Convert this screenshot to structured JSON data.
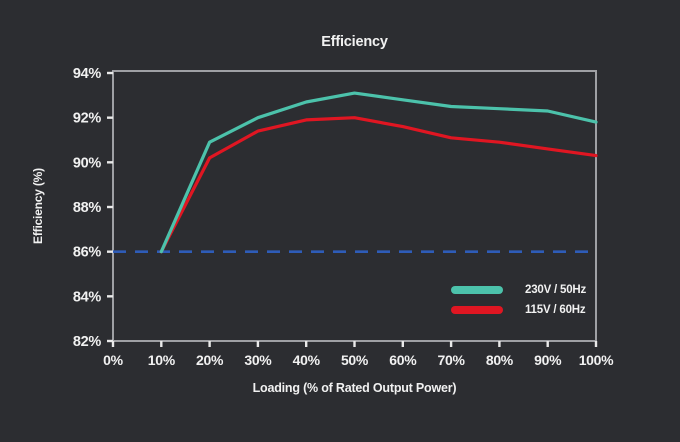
{
  "colors": {
    "background": "#2c2d31",
    "axis_border": "#9fa0a4",
    "tick": "#e9e9e9",
    "text": "#f1f1f1"
  },
  "chart_data": {
    "type": "line",
    "title": "Efficiency",
    "xlabel": "Loading (% of Rated Output Power)",
    "ylabel": "Efficiency (%)",
    "xlim": [
      0,
      100
    ],
    "ylim": [
      82,
      94
    ],
    "grid": false,
    "legend_position": "inside bottom-right",
    "x_ticks": [
      {
        "value": 0,
        "label": "0%"
      },
      {
        "value": 10,
        "label": "10%"
      },
      {
        "value": 20,
        "label": "20%"
      },
      {
        "value": 30,
        "label": "30%"
      },
      {
        "value": 40,
        "label": "40%"
      },
      {
        "value": 50,
        "label": "50%"
      },
      {
        "value": 60,
        "label": "60%"
      },
      {
        "value": 70,
        "label": "70%"
      },
      {
        "value": 80,
        "label": "80%"
      },
      {
        "value": 90,
        "label": "90%"
      },
      {
        "value": 100,
        "label": "100%"
      }
    ],
    "y_ticks": [
      {
        "value": 94,
        "label": "94%"
      },
      {
        "value": 92,
        "label": "92%"
      },
      {
        "value": 90,
        "label": "90%"
      },
      {
        "value": 88,
        "label": "88%"
      },
      {
        "value": 86,
        "label": "86%"
      },
      {
        "value": 84,
        "label": "84%"
      },
      {
        "value": 82,
        "label": "82%"
      }
    ],
    "x": [
      10,
      20,
      30,
      40,
      50,
      60,
      70,
      80,
      90,
      100
    ],
    "series": [
      {
        "name": "230V / 50Hz",
        "color": "#4cc2ab",
        "values": [
          86.0,
          90.9,
          92.0,
          92.7,
          93.1,
          92.8,
          92.5,
          92.4,
          92.3,
          91.8
        ]
      },
      {
        "name": "115V / 60Hz",
        "color": "#e01622",
        "values": [
          86.0,
          90.2,
          91.4,
          91.9,
          92.0,
          91.6,
          91.1,
          90.9,
          90.6,
          90.3
        ]
      }
    ],
    "reference_line": {
      "y": 86,
      "style": "dashed",
      "color": "#2e5cb8"
    }
  }
}
